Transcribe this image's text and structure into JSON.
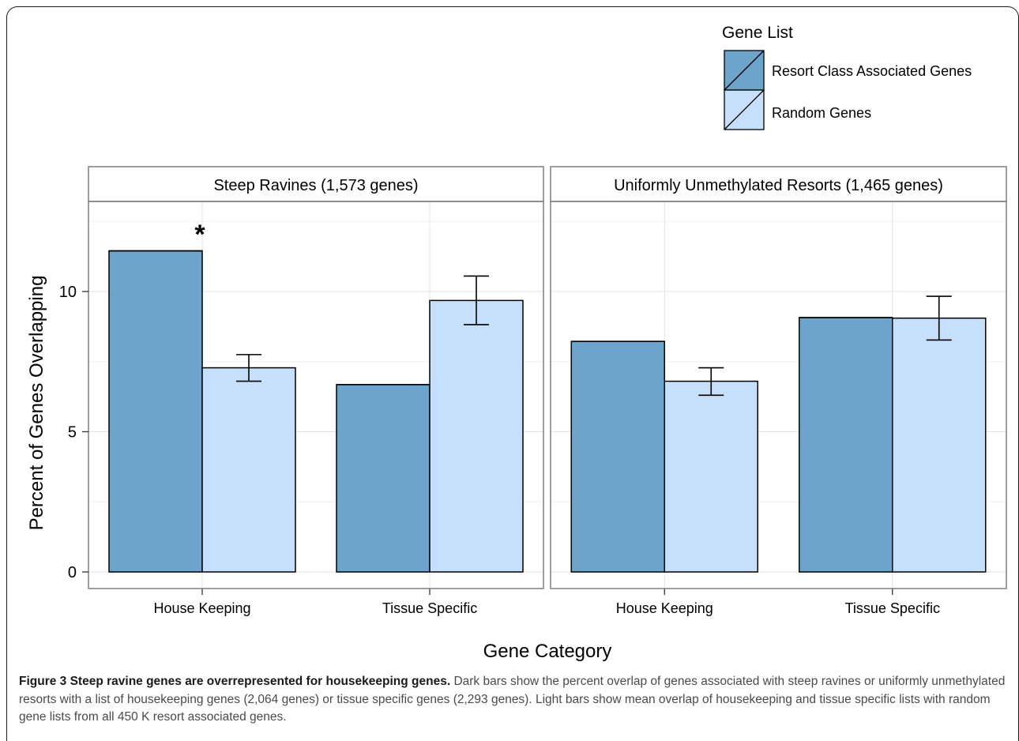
{
  "chart_data": {
    "type": "bar",
    "xlabel": "Gene Category",
    "ylabel": "Percent of Genes Overlapping",
    "ylim": [
      0,
      14
    ],
    "yticks": [
      0,
      5,
      10
    ],
    "grid": true,
    "legend": {
      "title": "Gene List",
      "placement": "top-right",
      "entries": [
        {
          "name": "Resort Class Associated Genes",
          "color": "#6ca4cc"
        },
        {
          "name": "Random Genes",
          "color": "#c6e0fb"
        }
      ]
    },
    "categories": [
      "House Keeping",
      "Tissue Specific"
    ],
    "panels": [
      {
        "title": "Steep Ravines (1,573 genes)",
        "series": [
          {
            "name": "Resort Class Associated Genes",
            "values": [
              11.45,
              6.68
            ]
          },
          {
            "name": "Random Genes",
            "values": [
              7.28,
              9.68
            ],
            "err_low": [
              6.8,
              8.82
            ],
            "err_high": [
              7.75,
              10.55
            ]
          }
        ],
        "annotations": [
          {
            "text": "*",
            "category": "House Keeping"
          }
        ]
      },
      {
        "title": "Uniformly Unmethylated Resorts (1,465 genes)",
        "series": [
          {
            "name": "Resort Class Associated Genes",
            "values": [
              8.22,
              9.07
            ]
          },
          {
            "name": "Random Genes",
            "values": [
              6.8,
              9.05
            ],
            "err_low": [
              6.3,
              8.27
            ],
            "err_high": [
              7.28,
              9.83
            ]
          }
        ],
        "annotations": []
      }
    ]
  },
  "caption": {
    "title": "Figure 3 Steep ravine genes are overrepresented for housekeeping genes.",
    "text": "Dark bars show the percent overlap of genes associated with steep ravines or uniformly unmethylated resorts with a list of housekeeping genes (2,064 genes) or tissue specific genes (2,293 genes). Light bars show mean overlap of housekeeping and tissue specific lists with random gene lists from all 450 K resort associated genes."
  }
}
